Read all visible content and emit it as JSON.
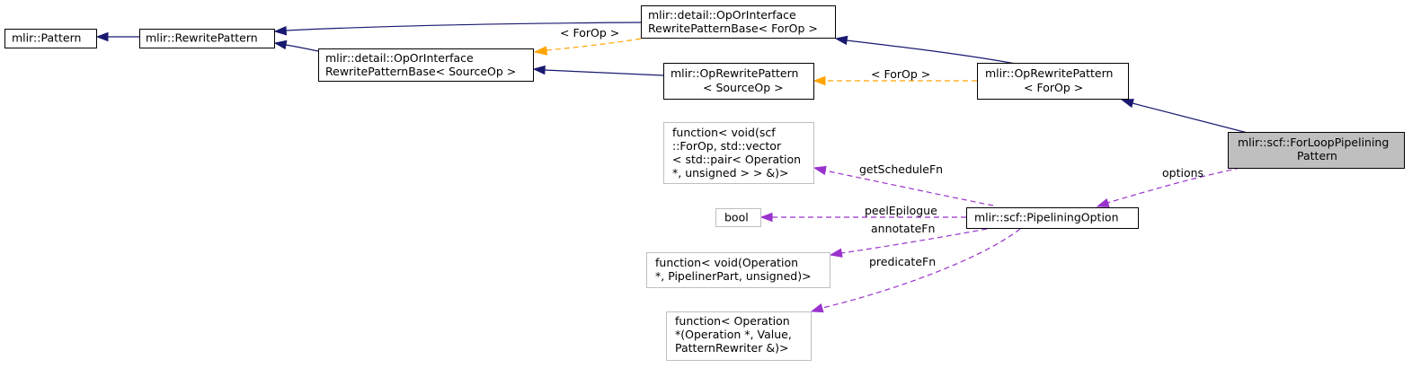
{
  "nodes": {
    "pattern": [
      "mlir::Pattern"
    ],
    "rewrite_pattern": [
      "mlir::RewritePattern"
    ],
    "op_or_iface_forop": [
      "mlir::detail::OpOrInterface",
      "RewritePatternBase< ForOp >"
    ],
    "op_or_iface_sourceop": [
      "mlir::detail::OpOrInterface",
      "RewritePatternBase< SourceOp >"
    ],
    "op_rewrite_sourceop": [
      "mlir::OpRewritePattern",
      "< SourceOp >"
    ],
    "op_rewrite_forop": [
      "mlir::OpRewritePattern",
      "< ForOp >"
    ],
    "for_loop_pipelining": [
      "mlir::scf::ForLoopPipelining",
      "Pattern"
    ],
    "get_schedule_type": [
      "function< void(scf",
      "::ForOp, std::vector",
      "< std::pair< Operation",
      "*, unsigned > > &)>"
    ],
    "bool_type": [
      "bool"
    ],
    "pipelining_option": [
      "mlir::scf::PipeliningOption"
    ],
    "annotate_type": [
      "function< void(Operation",
      " *, PipelinerPart, unsigned)>"
    ],
    "predicate_type": [
      "function< Operation",
      " *(Operation *, Value,",
      " PatternRewriter &)>"
    ]
  },
  "edge_labels": {
    "forop_template_1": "< ForOp >",
    "forop_template_2": "< ForOp >",
    "options": "options",
    "get_schedule_fn": "getScheduleFn",
    "peel_epilogue": "peelEpilogue",
    "annotate_fn": "annotateFn",
    "predicate_fn": "predicateFn"
  },
  "colors": {
    "inheritance": "#191970",
    "template_instance": "#ffa500",
    "usage": "#9a32cd",
    "highlight_fill": "#bfbfbf",
    "external_border": "#bfbfbf"
  }
}
